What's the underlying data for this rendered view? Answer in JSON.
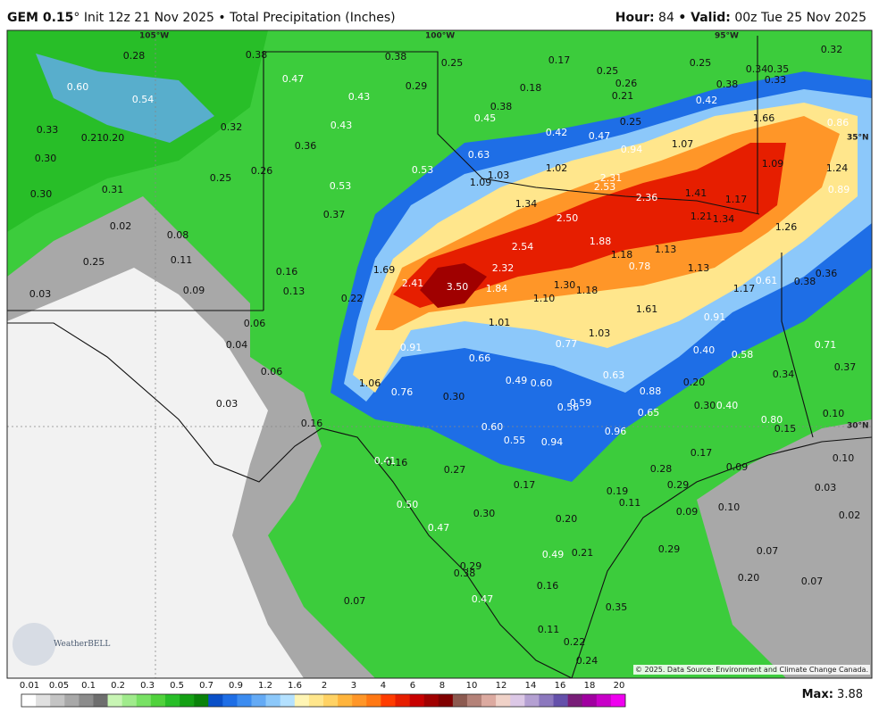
{
  "header": {
    "model": "GEM 0.15",
    "subtitle": "° Init 12z 21 Nov 2025 • Total Precipitation (Inches)",
    "hour_label": "Hour:",
    "hour": "84",
    "valid_label": "• Valid:",
    "valid": "00z Tue 25 Nov 2025"
  },
  "map": {
    "coords": [
      "105°W",
      "100°W",
      "95°W",
      "35°N",
      "30°N"
    ],
    "labels": [
      "0.28",
      "0.38",
      "0.38",
      "0.25",
      "0.17",
      "0.25",
      "0.25",
      "0.34",
      "0.35",
      "0.32",
      "0.60",
      "0.54",
      "0.47",
      "0.29",
      "0.18",
      "0.26",
      "0.38",
      "0.33",
      "0.43",
      "0.21",
      "0.42",
      "0.33",
      "0.21",
      "0.20",
      "0.32",
      "0.43",
      "0.38",
      "0.45",
      "0.25",
      "1.66",
      "0.86",
      "0.30",
      "0.36",
      "0.42",
      "0.47",
      "0.94",
      "1.07",
      "0.63",
      "1.03",
      "1.02",
      "0.53",
      "2.31",
      "1.09",
      "1.24",
      "0.26",
      "0.25",
      "1.09",
      "2.53",
      "0.89",
      "0.30",
      "0.31",
      "0.53",
      "2.36",
      "1.41",
      "1.17",
      "1.34",
      "0.37",
      "2.50",
      "1.21",
      "1.34",
      "1.26",
      "0.02",
      "0.08",
      "1.88",
      "2.54",
      "1.13",
      "1.18",
      "0.25",
      "0.11",
      "0.78",
      "1.13",
      "0.36",
      "1.69",
      "0.16",
      "2.32",
      "0.38",
      "0.61",
      "0.03",
      "2.41",
      "3.50",
      "1.84",
      "1.30",
      "1.18",
      "0.13",
      "0.09",
      "1.17",
      "0.22",
      "1.10",
      "1.61",
      "0.91",
      "0.06",
      "1.01",
      "1.03",
      "0.04",
      "0.91",
      "0.77",
      "0.40",
      "0.58",
      "0.71",
      "0.66",
      "0.06",
      "0.37",
      "0.34",
      "0.63",
      "1.06",
      "0.49",
      "0.60",
      "0.20",
      "0.76",
      "0.88",
      "0.30",
      "0.03",
      "0.59",
      "0.56",
      "0.30",
      "0.40",
      "0.65",
      "0.10",
      "0.16",
      "0.60",
      "0.96",
      "0.80",
      "0.15",
      "0.55",
      "0.94",
      "0.17",
      "0.41",
      "0.16",
      "0.27",
      "0.28",
      "0.09",
      "0.10",
      "0.17",
      "0.19",
      "0.29",
      "0.03",
      "0.50",
      "0.11",
      "0.09",
      "0.10",
      "0.30",
      "0.20",
      "0.02",
      "0.47",
      "0.49",
      "0.21",
      "0.29",
      "0.07",
      "0.29",
      "0.38",
      "0.20",
      "0.07",
      "0.16",
      "0.07",
      "0.47",
      "0.35",
      "0.11",
      "0.22",
      "0.24"
    ],
    "logo": "WeatherBELL",
    "copyright": "© 2025. Data Source: Environment and Climate Change Canada."
  },
  "colorbar": {
    "ticks": [
      "0.01",
      "0.05",
      "0.1",
      "0.2",
      "0.3",
      "0.5",
      "0.7",
      "0.9",
      "1.2",
      "1.6",
      "2",
      "3",
      "4",
      "6",
      "8",
      "10",
      "12",
      "14",
      "16",
      "18",
      "20"
    ],
    "colors": [
      "#ffffff",
      "#e0e0e0",
      "#c4c4c4",
      "#a8a8a8",
      "#8c8c8c",
      "#6e6e6e",
      "#c8f5b4",
      "#a0eb8c",
      "#78e164",
      "#50d23c",
      "#28be28",
      "#14a014",
      "#0a820a",
      "#0a50c8",
      "#1e6ee6",
      "#3c8cf0",
      "#64aaf5",
      "#8cc8fa",
      "#b4e1ff",
      "#fff5b4",
      "#ffe68c",
      "#ffd264",
      "#ffb43c",
      "#ff9628",
      "#ff7814",
      "#ff3c00",
      "#e61e00",
      "#c80000",
      "#a00000",
      "#800000",
      "#8c5a50",
      "#b48278",
      "#dcaaa0",
      "#f0d2c8",
      "#dcc8e6",
      "#b4a0d2",
      "#8c78be",
      "#6450aa",
      "#781e78",
      "#a000a0",
      "#c800c8",
      "#f000f0"
    ]
  },
  "footer": {
    "max_label": "Max:",
    "max": "3.88"
  }
}
